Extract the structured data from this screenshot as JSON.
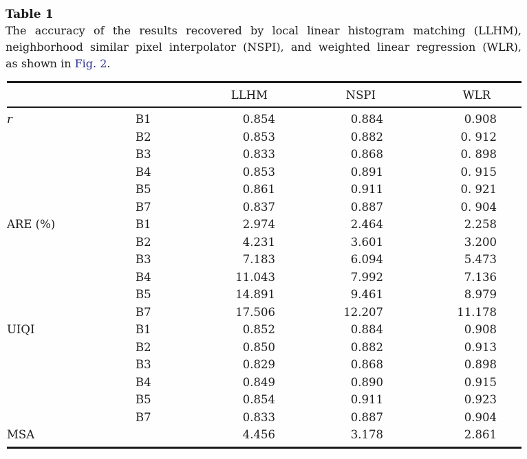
{
  "page": {
    "title": "Table 1",
    "caption": {
      "line1": "The accuracy of the results recovered by local linear histogram matching (LLHM),",
      "line2": "neighborhood similar pixel interpolator (NSPI), and weighted linear regression (WLR),",
      "line3_prefix": "as shown in ",
      "line3_link": "Fig. 2",
      "line3_suffix": "."
    }
  },
  "colors": {
    "text": "#1d1d1d",
    "link": "#2d3092",
    "rule": "#1a1a1a",
    "background": "#fefefe"
  },
  "chart_data": {
    "type": "table",
    "columns": [
      "",
      "",
      "LLHM",
      "NSPI",
      "WLR"
    ],
    "sections": [
      {
        "metric": "r",
        "italic": true,
        "rows": [
          [
            "B1",
            "0.854",
            "0.884",
            "0.908"
          ],
          [
            "B2",
            "0.853",
            "0.882",
            "0. 912"
          ],
          [
            "B3",
            "0.833",
            "0.868",
            "0. 898"
          ],
          [
            "B4",
            "0.853",
            "0.891",
            "0. 915"
          ],
          [
            "B5",
            "0.861",
            "0.911",
            "0. 921"
          ],
          [
            "B7",
            "0.837",
            "0.887",
            "0. 904"
          ]
        ]
      },
      {
        "metric": "ARE (%)",
        "italic": false,
        "rows": [
          [
            "B1",
            "2.974",
            "2.464",
            "2.258"
          ],
          [
            "B2",
            "4.231",
            "3.601",
            "3.200"
          ],
          [
            "B3",
            "7.183",
            "6.094",
            "5.473"
          ],
          [
            "B4",
            "11.043",
            "7.992",
            "7.136"
          ],
          [
            "B5",
            "14.891",
            "9.461",
            "8.979"
          ],
          [
            "B7",
            "17.506",
            "12.207",
            "11.178"
          ]
        ]
      },
      {
        "metric": "UIQI",
        "italic": false,
        "rows": [
          [
            "B1",
            "0.852",
            "0.884",
            "0.908"
          ],
          [
            "B2",
            "0.850",
            "0.882",
            "0.913"
          ],
          [
            "B3",
            "0.829",
            "0.868",
            "0.898"
          ],
          [
            "B4",
            "0.849",
            "0.890",
            "0.915"
          ],
          [
            "B5",
            "0.854",
            "0.911",
            "0.923"
          ],
          [
            "B7",
            "0.833",
            "0.887",
            "0.904"
          ]
        ]
      },
      {
        "metric": "MSA",
        "italic": false,
        "rows": [
          [
            "",
            "4.456",
            "3.178",
            "2.861"
          ]
        ]
      }
    ]
  }
}
